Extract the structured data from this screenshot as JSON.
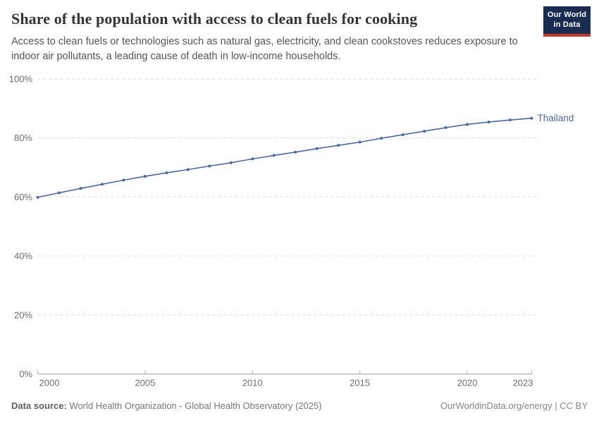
{
  "header": {
    "title": "Share of the population with access to clean fuels for cooking",
    "subtitle": "Access to clean fuels or technologies such as natural gas, electricity, and clean cookstoves reduces exposure to indoor air pollutants, a leading cause of death in low-income households.",
    "logo": {
      "line1": "Our World",
      "line2": "in Data"
    }
  },
  "chart_data": {
    "type": "line",
    "title": "Share of the population with access to clean fuels for cooking",
    "xlabel": "",
    "ylabel": "",
    "xlim": [
      2000,
      2023
    ],
    "ylim": [
      0,
      100
    ],
    "grid": "horizontal-dashed",
    "legend_position": "end-of-line-label",
    "x": [
      2000,
      2001,
      2002,
      2003,
      2004,
      2005,
      2006,
      2007,
      2008,
      2009,
      2010,
      2011,
      2012,
      2013,
      2014,
      2015,
      2016,
      2017,
      2018,
      2019,
      2020,
      2021,
      2022,
      2023
    ],
    "series": [
      {
        "name": "Thailand",
        "color": "#4c6a9c",
        "values": [
          59.9,
          61.4,
          62.9,
          64.3,
          65.7,
          67.0,
          68.2,
          69.3,
          70.5,
          71.6,
          72.9,
          74.1,
          75.2,
          76.4,
          77.5,
          78.6,
          79.9,
          81.1,
          82.3,
          83.5,
          84.6,
          85.4,
          86.1,
          86.7
        ]
      }
    ],
    "y_ticks": [
      {
        "value": 0,
        "label": "0%"
      },
      {
        "value": 20,
        "label": "20%"
      },
      {
        "value": 40,
        "label": "40%"
      },
      {
        "value": 60,
        "label": "60%"
      },
      {
        "value": 80,
        "label": "80%"
      },
      {
        "value": 100,
        "label": "100%"
      }
    ],
    "x_ticks": [
      {
        "value": 2000,
        "label": "2000"
      },
      {
        "value": 2005,
        "label": "2005"
      },
      {
        "value": 2010,
        "label": "2010"
      },
      {
        "value": 2015,
        "label": "2015"
      },
      {
        "value": 2020,
        "label": "2020"
      },
      {
        "value": 2023,
        "label": "2023"
      }
    ]
  },
  "footer": {
    "source_label": "Data source:",
    "source_text": "World Health Organization - Global Health Observatory (2025)",
    "credit": "OurWorldinData.org/energy | CC BY"
  },
  "colors": {
    "accent_line": "#4c6a9c",
    "logo_bg": "#182c51",
    "logo_stripe": "#c5372c",
    "gridline": "#dcdcdc",
    "axis_line": "#a3a3a3",
    "tick_mark": "#b3b3b3",
    "tick_label": "#6e6e6e",
    "title_text": "#353535",
    "subtitle_text": "#555555",
    "footer_text": "#787878"
  }
}
